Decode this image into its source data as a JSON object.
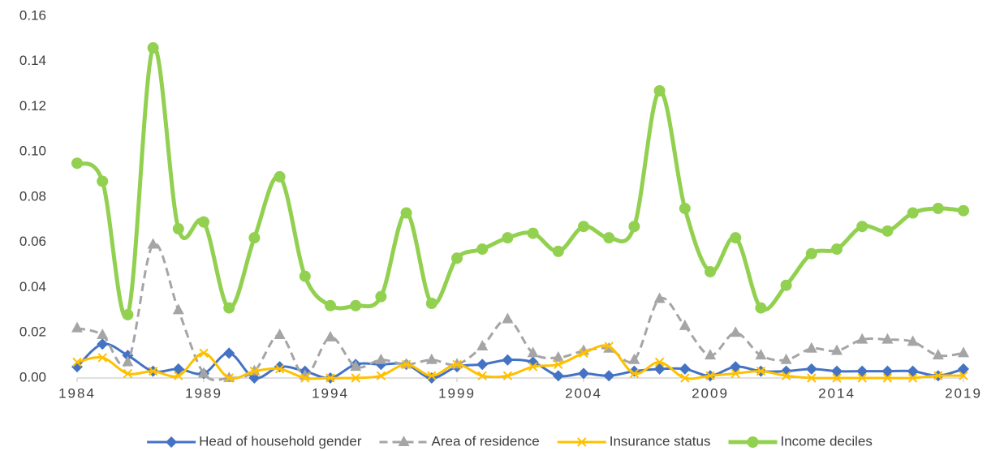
{
  "chart_data": {
    "type": "line",
    "smooth": true,
    "x": [
      1984,
      1985,
      1986,
      1987,
      1988,
      1989,
      1990,
      1991,
      1992,
      1993,
      1994,
      1995,
      1996,
      1997,
      1998,
      1999,
      2000,
      2001,
      2002,
      2003,
      2004,
      2005,
      2006,
      2007,
      2008,
      2009,
      2010,
      2011,
      2012,
      2013,
      2014,
      2015,
      2016,
      2017,
      2018,
      2019
    ],
    "xlim": [
      1984,
      2019
    ],
    "xticks": [
      1984,
      1989,
      1994,
      1999,
      2004,
      2009,
      2014,
      2019
    ],
    "ylim": [
      0,
      0.16
    ],
    "yticks": [
      {
        "value": 0,
        "label": "0.00"
      },
      0.02,
      0.04,
      0.06,
      0.08,
      {
        "value": 0.1,
        "label": "0.10"
      },
      0.12,
      0.14,
      0.16
    ],
    "grid": false,
    "legend": "bottom",
    "series": [
      {
        "name": "Head of household gender",
        "color": "#4472c4",
        "marker": "diamond",
        "dash": false,
        "values": [
          0.005,
          0.015,
          0.01,
          0.003,
          0.004,
          0.002,
          0.011,
          0.0,
          0.005,
          0.003,
          0.0,
          0.006,
          0.006,
          0.006,
          0.0,
          0.005,
          0.006,
          0.008,
          0.007,
          0.001,
          0.002,
          0.001,
          0.003,
          0.004,
          0.004,
          0.001,
          0.005,
          0.003,
          0.003,
          0.004,
          0.003,
          0.003,
          0.003,
          0.003,
          0.001,
          0.004
        ]
      },
      {
        "name": "Area of residence",
        "color": "#a5a5a5",
        "marker": "triangle",
        "dash": true,
        "values": [
          0.022,
          0.019,
          0.007,
          0.059,
          0.03,
          0.002,
          0.0,
          0.003,
          0.019,
          0.001,
          0.018,
          0.005,
          0.008,
          0.006,
          0.008,
          0.006,
          0.014,
          0.026,
          0.011,
          0.009,
          0.012,
          0.013,
          0.008,
          0.035,
          0.023,
          0.01,
          0.02,
          0.01,
          0.008,
          0.013,
          0.012,
          0.017,
          0.017,
          0.016,
          0.01,
          0.011
        ]
      },
      {
        "name": "Insurance status",
        "color": "#ffc000",
        "marker": "x",
        "dash": false,
        "values": [
          0.007,
          0.009,
          0.002,
          0.003,
          0.001,
          0.011,
          0.0,
          0.003,
          0.004,
          0.0,
          0.0,
          0.0,
          0.001,
          0.006,
          0.001,
          0.006,
          0.001,
          0.001,
          0.005,
          0.006,
          0.011,
          0.014,
          0.002,
          0.007,
          0.0,
          0.001,
          0.002,
          0.003,
          0.001,
          0.0,
          0.0,
          0.0,
          0.0,
          0.0,
          0.001,
          0.001
        ]
      },
      {
        "name": "Income deciles",
        "color": "#92d050",
        "marker": "circle",
        "dash": false,
        "values": [
          0.095,
          0.087,
          0.028,
          0.146,
          0.066,
          0.069,
          0.031,
          0.062,
          0.089,
          0.045,
          0.032,
          0.032,
          0.036,
          0.073,
          0.033,
          0.053,
          0.057,
          0.062,
          0.064,
          0.056,
          0.067,
          0.062,
          0.067,
          0.127,
          0.075,
          0.047,
          0.062,
          0.031,
          0.041,
          0.055,
          0.057,
          0.067,
          0.065,
          0.073,
          0.075,
          0.074
        ]
      }
    ]
  }
}
